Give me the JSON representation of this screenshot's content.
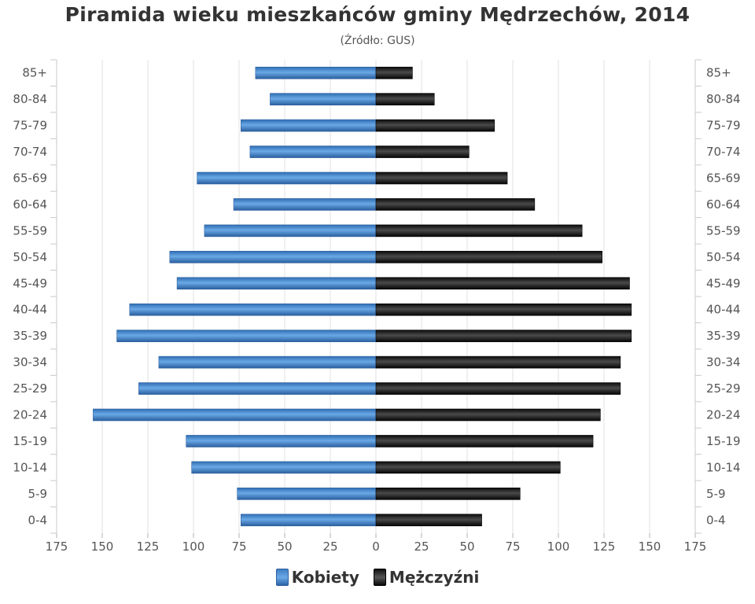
{
  "chart_data": {
    "type": "bar",
    "orientation": "horizontal",
    "layout": "population-pyramid",
    "title": "Piramida wieku mieszkańców gminy Mędrzechów, 2014",
    "subtitle": "(Źródło: GUS)",
    "categories": [
      "85+",
      "80-84",
      "75-79",
      "70-74",
      "65-69",
      "60-64",
      "55-59",
      "50-54",
      "45-49",
      "40-44",
      "35-39",
      "30-34",
      "25-29",
      "20-24",
      "15-19",
      "10-14",
      "5-9",
      "0-4"
    ],
    "series": [
      {
        "name": "Kobiety",
        "side": "left",
        "color": "#4a8bd0",
        "values": [
          66,
          58,
          74,
          69,
          98,
          78,
          94,
          113,
          109,
          135,
          142,
          119,
          130,
          155,
          104,
          101,
          76,
          74
        ]
      },
      {
        "name": "Mężczyźni",
        "side": "right",
        "color": "#1a1a1a",
        "values": [
          20,
          32,
          65,
          51,
          72,
          87,
          113,
          124,
          139,
          140,
          140,
          134,
          134,
          123,
          119,
          101,
          79,
          58
        ]
      }
    ],
    "x_ticks": [
      "175",
      "150",
      "125",
      "100",
      "75",
      "50",
      "25",
      "0",
      "25",
      "50",
      "75",
      "100",
      "125",
      "150",
      "175"
    ],
    "xlim": [
      -175,
      175
    ],
    "grid": true,
    "legend_position": "bottom-center"
  }
}
